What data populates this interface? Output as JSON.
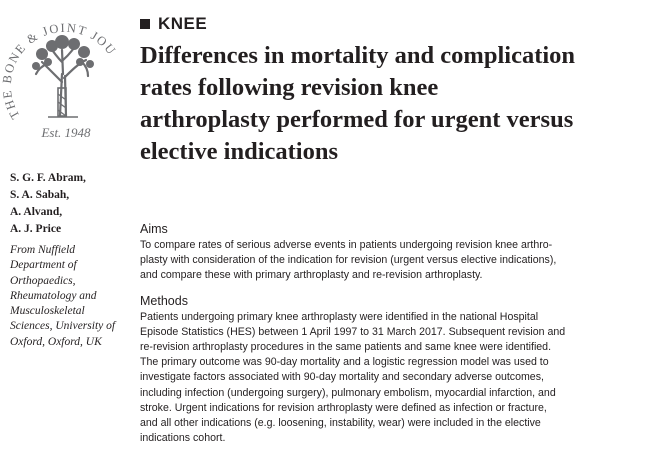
{
  "journal": {
    "name_arc": "THE BONE & JOINT JOURNAL",
    "established": "Est. 1948"
  },
  "section": "KNEE",
  "title_lines": [
    "Differences in mortality and complication",
    "rates following revision knee",
    "arthroplasty performed for urgent versus",
    "elective indications"
  ],
  "authors": [
    "S. G. F. Abram,",
    "S. A. Sabah,",
    "A. Alvand,",
    "A. J. Price"
  ],
  "affiliation_lines": [
    "From Nuffield",
    "Department of",
    "Orthopaedics,",
    "Rheumatology and",
    "Musculoskeletal",
    "Sciences, University of",
    "Oxford, Oxford, UK"
  ],
  "aims": {
    "heading": "Aims",
    "lines": [
      "To compare rates of serious adverse events in patients undergoing revision knee arthro-",
      "plasty with consideration of the indication for revision (urgent versus elective indications),",
      "and compare these with primary arthroplasty and re-revision arthroplasty."
    ]
  },
  "methods": {
    "heading": "Methods",
    "lines": [
      "Patients undergoing primary knee arthroplasty were identified in the national Hospital",
      "Episode Statistics (HES) between 1 April 1997 to 31 March 2017. Subsequent revision and",
      "re-revision arthroplasty procedures in the same patients and same knee were identified.",
      "The primary outcome was 90-day mortality and a logistic regression model was used to",
      "investigate factors associated with 90-day mortality and secondary adverse outcomes,",
      "including infection (undergoing surgery), pulmonary embolism, myocardial infarction, and",
      "stroke. Urgent indications for revision arthroplasty were defined as infection or fracture,",
      "and all other indications (e.g. loosening, instability, wear) were included in the elective",
      "indications cohort."
    ]
  }
}
